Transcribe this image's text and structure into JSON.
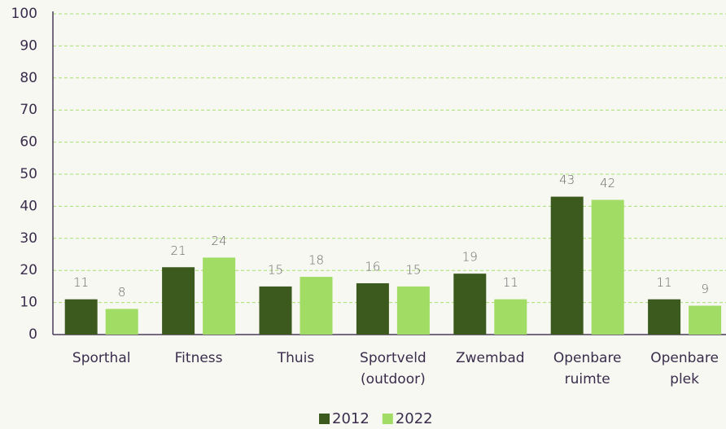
{
  "chart_data": {
    "type": "bar",
    "categories": [
      "Sporthal",
      "Fitness",
      "Thuis",
      "Sportveld (outdoor)",
      "Zwembad",
      "Openbare ruimte",
      "Openbare plek"
    ],
    "series": [
      {
        "name": "2012",
        "color": "#3d5a1e",
        "values": [
          11,
          21,
          15,
          16,
          19,
          43,
          11
        ]
      },
      {
        "name": "2022",
        "color": "#a1dc64",
        "values": [
          8,
          24,
          18,
          15,
          11,
          42,
          9
        ]
      }
    ],
    "ylim": [
      0,
      100
    ],
    "yticks": [
      0,
      10,
      20,
      30,
      40,
      50,
      60,
      70,
      80,
      90,
      100
    ],
    "grid": true,
    "legend": "bottom"
  }
}
